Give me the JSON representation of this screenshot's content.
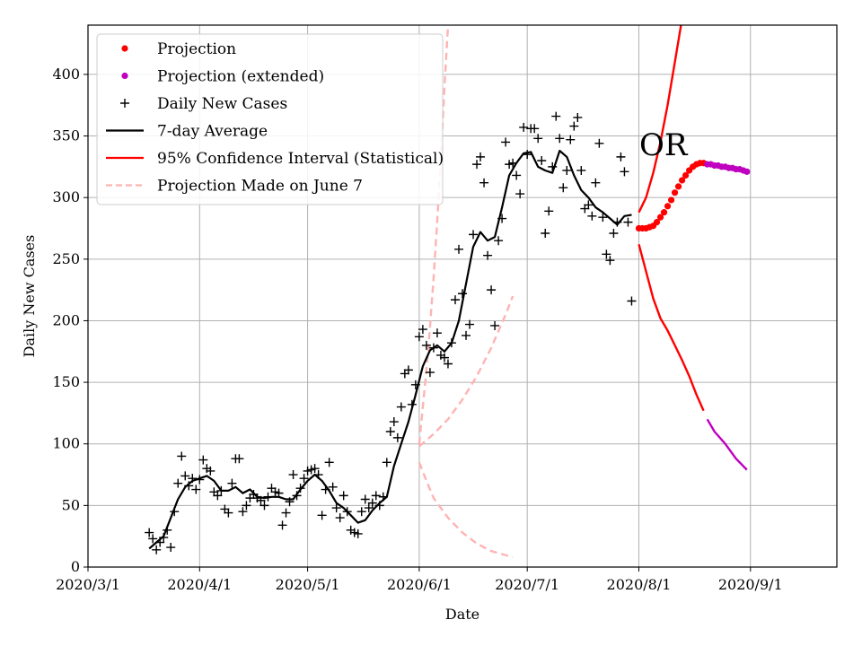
{
  "chart_data": {
    "type": "line",
    "xlabel": "Date",
    "ylabel": "Daily New Cases",
    "annotation": "OR",
    "xlim": [
      "2020-03-01",
      "2020-09-25"
    ],
    "ylim": [
      0,
      440
    ],
    "x_ticks": [
      {
        "date": "2020-03-01",
        "label": "2020/3/1"
      },
      {
        "date": "2020-04-01",
        "label": "2020/4/1"
      },
      {
        "date": "2020-05-01",
        "label": "2020/5/1"
      },
      {
        "date": "2020-06-01",
        "label": "2020/6/1"
      },
      {
        "date": "2020-07-01",
        "label": "2020/7/1"
      },
      {
        "date": "2020-08-01",
        "label": "2020/8/1"
      },
      {
        "date": "2020-09-01",
        "label": "2020/9/1"
      }
    ],
    "y_ticks": [
      0,
      50,
      100,
      150,
      200,
      250,
      300,
      350,
      400
    ],
    "grid": true,
    "legend_position": "top-left",
    "legend": [
      {
        "label": "Projection",
        "marker": "dot",
        "color": "#ff0000"
      },
      {
        "label": "Projection (extended)",
        "marker": "dot",
        "color": "#bf00bf"
      },
      {
        "label": "Daily New Cases",
        "marker": "plus",
        "color": "#000000"
      },
      {
        "label": "7-day Average",
        "marker": "line",
        "color": "#000000"
      },
      {
        "label": "95% Confidence Interval (Statistical)",
        "marker": "line",
        "color": "#ff0000"
      },
      {
        "label": "Projection Made on June 7",
        "marker": "dashed",
        "color": "#ffb3b3"
      }
    ],
    "daily_new_cases": [
      [
        "2020-03-18",
        28
      ],
      [
        "2020-03-19",
        23
      ],
      [
        "2020-03-20",
        14
      ],
      [
        "2020-03-21",
        20
      ],
      [
        "2020-03-22",
        24
      ],
      [
        "2020-03-23",
        30
      ],
      [
        "2020-03-24",
        16
      ],
      [
        "2020-03-25",
        45
      ],
      [
        "2020-03-26",
        68
      ],
      [
        "2020-03-27",
        90
      ],
      [
        "2020-03-28",
        74
      ],
      [
        "2020-03-29",
        66
      ],
      [
        "2020-03-30",
        72
      ],
      [
        "2020-03-31",
        63
      ],
      [
        "2020-04-01",
        71
      ],
      [
        "2020-04-02",
        87
      ],
      [
        "2020-04-03",
        80
      ],
      [
        "2020-04-04",
        78
      ],
      [
        "2020-04-05",
        61
      ],
      [
        "2020-04-06",
        58
      ],
      [
        "2020-04-07",
        62
      ],
      [
        "2020-04-08",
        47
      ],
      [
        "2020-04-09",
        44
      ],
      [
        "2020-04-10",
        68
      ],
      [
        "2020-04-11",
        88
      ],
      [
        "2020-04-12",
        88
      ],
      [
        "2020-04-13",
        45
      ],
      [
        "2020-04-14",
        50
      ],
      [
        "2020-04-15",
        56
      ],
      [
        "2020-04-16",
        59
      ],
      [
        "2020-04-17",
        56
      ],
      [
        "2020-04-18",
        54
      ],
      [
        "2020-04-19",
        50
      ],
      [
        "2020-04-20",
        57
      ],
      [
        "2020-04-21",
        64
      ],
      [
        "2020-04-22",
        61
      ],
      [
        "2020-04-23",
        60
      ],
      [
        "2020-04-24",
        34
      ],
      [
        "2020-04-25",
        44
      ],
      [
        "2020-04-26",
        53
      ],
      [
        "2020-04-27",
        75
      ],
      [
        "2020-04-28",
        58
      ],
      [
        "2020-04-29",
        64
      ],
      [
        "2020-04-30",
        72
      ],
      [
        "2020-05-01",
        78
      ],
      [
        "2020-05-02",
        79
      ],
      [
        "2020-05-03",
        80
      ],
      [
        "2020-05-04",
        75
      ],
      [
        "2020-05-05",
        42
      ],
      [
        "2020-05-06",
        63
      ],
      [
        "2020-05-07",
        85
      ],
      [
        "2020-05-08",
        65
      ],
      [
        "2020-05-09",
        48
      ],
      [
        "2020-05-10",
        40
      ],
      [
        "2020-05-11",
        58
      ],
      [
        "2020-05-12",
        45
      ],
      [
        "2020-05-13",
        30
      ],
      [
        "2020-05-14",
        28
      ],
      [
        "2020-05-15",
        27
      ],
      [
        "2020-05-16",
        45
      ],
      [
        "2020-05-17",
        55
      ],
      [
        "2020-05-18",
        48
      ],
      [
        "2020-05-19",
        52
      ],
      [
        "2020-05-20",
        58
      ],
      [
        "2020-05-21",
        50
      ],
      [
        "2020-05-22",
        57
      ],
      [
        "2020-05-23",
        85
      ],
      [
        "2020-05-24",
        110
      ],
      [
        "2020-05-25",
        118
      ],
      [
        "2020-05-26",
        105
      ],
      [
        "2020-05-27",
        130
      ],
      [
        "2020-05-28",
        157
      ],
      [
        "2020-05-29",
        160
      ],
      [
        "2020-05-30",
        132
      ],
      [
        "2020-05-31",
        148
      ],
      [
        "2020-06-01",
        187
      ],
      [
        "2020-06-02",
        193
      ],
      [
        "2020-06-03",
        180
      ],
      [
        "2020-06-04",
        158
      ],
      [
        "2020-06-05",
        178
      ],
      [
        "2020-06-06",
        190
      ],
      [
        "2020-06-07",
        172
      ],
      [
        "2020-06-08",
        170
      ],
      [
        "2020-06-09",
        165
      ],
      [
        "2020-06-10",
        182
      ],
      [
        "2020-06-11",
        217
      ],
      [
        "2020-06-12",
        258
      ],
      [
        "2020-06-13",
        222
      ],
      [
        "2020-06-14",
        188
      ],
      [
        "2020-06-15",
        197
      ],
      [
        "2020-06-16",
        270
      ],
      [
        "2020-06-17",
        327
      ],
      [
        "2020-06-18",
        333
      ],
      [
        "2020-06-19",
        312
      ],
      [
        "2020-06-20",
        253
      ],
      [
        "2020-06-21",
        225
      ],
      [
        "2020-06-22",
        196
      ],
      [
        "2020-06-23",
        265
      ],
      [
        "2020-06-24",
        283
      ],
      [
        "2020-06-25",
        345
      ],
      [
        "2020-06-26",
        327
      ],
      [
        "2020-06-27",
        328
      ],
      [
        "2020-06-28",
        318
      ],
      [
        "2020-06-29",
        303
      ],
      [
        "2020-06-30",
        357
      ],
      [
        "2020-07-01",
        335
      ],
      [
        "2020-07-02",
        356
      ],
      [
        "2020-07-03",
        356
      ],
      [
        "2020-07-04",
        348
      ],
      [
        "2020-07-05",
        330
      ],
      [
        "2020-07-06",
        271
      ],
      [
        "2020-07-07",
        289
      ],
      [
        "2020-07-08",
        325
      ],
      [
        "2020-07-09",
        366
      ],
      [
        "2020-07-10",
        348
      ],
      [
        "2020-07-11",
        308
      ],
      [
        "2020-07-12",
        322
      ],
      [
        "2020-07-13",
        347
      ],
      [
        "2020-07-14",
        358
      ],
      [
        "2020-07-15",
        365
      ],
      [
        "2020-07-16",
        322
      ],
      [
        "2020-07-17",
        291
      ],
      [
        "2020-07-18",
        294
      ],
      [
        "2020-07-19",
        285
      ],
      [
        "2020-07-20",
        312
      ],
      [
        "2020-07-21",
        344
      ],
      [
        "2020-07-22",
        284
      ],
      [
        "2020-07-23",
        254
      ],
      [
        "2020-07-24",
        249
      ],
      [
        "2020-07-25",
        271
      ],
      [
        "2020-07-26",
        280
      ],
      [
        "2020-07-27",
        333
      ],
      [
        "2020-07-28",
        321
      ],
      [
        "2020-07-29",
        280
      ],
      [
        "2020-07-30",
        216
      ]
    ],
    "seven_day_average": [
      [
        "2020-03-18",
        15
      ],
      [
        "2020-03-20",
        20
      ],
      [
        "2020-03-22",
        25
      ],
      [
        "2020-03-24",
        40
      ],
      [
        "2020-03-26",
        55
      ],
      [
        "2020-03-28",
        65
      ],
      [
        "2020-03-30",
        70
      ],
      [
        "2020-04-01",
        72
      ],
      [
        "2020-04-03",
        74
      ],
      [
        "2020-04-05",
        70
      ],
      [
        "2020-04-07",
        62
      ],
      [
        "2020-04-09",
        62
      ],
      [
        "2020-04-11",
        65
      ],
      [
        "2020-04-13",
        60
      ],
      [
        "2020-04-15",
        63
      ],
      [
        "2020-04-17",
        57
      ],
      [
        "2020-04-19",
        56
      ],
      [
        "2020-04-21",
        57
      ],
      [
        "2020-04-23",
        57
      ],
      [
        "2020-04-25",
        55
      ],
      [
        "2020-04-27",
        55
      ],
      [
        "2020-04-29",
        63
      ],
      [
        "2020-05-01",
        70
      ],
      [
        "2020-05-03",
        75
      ],
      [
        "2020-05-05",
        70
      ],
      [
        "2020-05-07",
        62
      ],
      [
        "2020-05-09",
        52
      ],
      [
        "2020-05-11",
        48
      ],
      [
        "2020-05-13",
        42
      ],
      [
        "2020-05-15",
        36
      ],
      [
        "2020-05-17",
        38
      ],
      [
        "2020-05-19",
        46
      ],
      [
        "2020-05-21",
        52
      ],
      [
        "2020-05-23",
        57
      ],
      [
        "2020-05-25",
        82
      ],
      [
        "2020-05-27",
        100
      ],
      [
        "2020-05-29",
        118
      ],
      [
        "2020-05-31",
        140
      ],
      [
        "2020-06-02",
        163
      ],
      [
        "2020-06-04",
        176
      ],
      [
        "2020-06-06",
        180
      ],
      [
        "2020-06-08",
        175
      ],
      [
        "2020-06-10",
        182
      ],
      [
        "2020-06-12",
        200
      ],
      [
        "2020-06-14",
        230
      ],
      [
        "2020-06-16",
        260
      ],
      [
        "2020-06-18",
        272
      ],
      [
        "2020-06-20",
        265
      ],
      [
        "2020-06-22",
        268
      ],
      [
        "2020-06-24",
        292
      ],
      [
        "2020-06-26",
        318
      ],
      [
        "2020-06-28",
        328
      ],
      [
        "2020-06-30",
        336
      ],
      [
        "2020-07-02",
        337
      ],
      [
        "2020-07-04",
        325
      ],
      [
        "2020-07-06",
        322
      ],
      [
        "2020-07-08",
        320
      ],
      [
        "2020-07-10",
        338
      ],
      [
        "2020-07-12",
        333
      ],
      [
        "2020-07-14",
        318
      ],
      [
        "2020-07-16",
        306
      ],
      [
        "2020-07-18",
        300
      ],
      [
        "2020-07-20",
        292
      ],
      [
        "2020-07-22",
        288
      ],
      [
        "2020-07-24",
        283
      ],
      [
        "2020-07-26",
        278
      ],
      [
        "2020-07-28",
        285
      ],
      [
        "2020-07-30",
        286
      ]
    ],
    "projection": [
      [
        "2020-08-01",
        275
      ],
      [
        "2020-08-02",
        275
      ],
      [
        "2020-08-03",
        275
      ],
      [
        "2020-08-04",
        276
      ],
      [
        "2020-08-05",
        277
      ],
      [
        "2020-08-06",
        280
      ],
      [
        "2020-08-07",
        284
      ],
      [
        "2020-08-08",
        288
      ],
      [
        "2020-08-09",
        293
      ],
      [
        "2020-08-10",
        298
      ],
      [
        "2020-08-11",
        304
      ],
      [
        "2020-08-12",
        309
      ],
      [
        "2020-08-13",
        314
      ],
      [
        "2020-08-14",
        318
      ],
      [
        "2020-08-15",
        322
      ],
      [
        "2020-08-16",
        325
      ],
      [
        "2020-08-17",
        327
      ],
      [
        "2020-08-18",
        328
      ],
      [
        "2020-08-19",
        328
      ]
    ],
    "projection_extended": [
      [
        "2020-08-20",
        327
      ],
      [
        "2020-08-21",
        327
      ],
      [
        "2020-08-22",
        326
      ],
      [
        "2020-08-23",
        326
      ],
      [
        "2020-08-24",
        325
      ],
      [
        "2020-08-25",
        325
      ],
      [
        "2020-08-26",
        324
      ],
      [
        "2020-08-27",
        324
      ],
      [
        "2020-08-28",
        323
      ],
      [
        "2020-08-29",
        323
      ],
      [
        "2020-08-30",
        322
      ],
      [
        "2020-08-31",
        321
      ]
    ],
    "ci_upper": [
      [
        "2020-08-01",
        288
      ],
      [
        "2020-08-03",
        300
      ],
      [
        "2020-08-05",
        320
      ],
      [
        "2020-08-07",
        345
      ],
      [
        "2020-08-09",
        375
      ],
      [
        "2020-08-11",
        410
      ],
      [
        "2020-08-13",
        445
      ]
    ],
    "ci_lower": [
      [
        "2020-08-01",
        262
      ],
      [
        "2020-08-03",
        240
      ],
      [
        "2020-08-05",
        218
      ],
      [
        "2020-08-07",
        202
      ],
      [
        "2020-08-09",
        192
      ],
      [
        "2020-08-11",
        180
      ],
      [
        "2020-08-13",
        168
      ],
      [
        "2020-08-15",
        155
      ],
      [
        "2020-08-17",
        140
      ],
      [
        "2020-08-19",
        127
      ]
    ],
    "ci_lower_extended": [
      [
        "2020-08-20",
        120
      ],
      [
        "2020-08-22",
        110
      ],
      [
        "2020-08-25",
        100
      ],
      [
        "2020-08-28",
        88
      ],
      [
        "2020-08-31",
        79
      ]
    ],
    "june7_projection_upper": [
      [
        "2020-06-01",
        100
      ],
      [
        "2020-06-02",
        130
      ],
      [
        "2020-06-03",
        160
      ],
      [
        "2020-06-04",
        195
      ],
      [
        "2020-06-05",
        235
      ],
      [
        "2020-06-06",
        280
      ],
      [
        "2020-06-07",
        330
      ],
      [
        "2020-06-08",
        390
      ],
      [
        "2020-06-09",
        440
      ]
    ],
    "june7_projection_middle": [
      [
        "2020-06-01",
        98
      ],
      [
        "2020-06-05",
        108
      ],
      [
        "2020-06-09",
        120
      ],
      [
        "2020-06-13",
        136
      ],
      [
        "2020-06-17",
        155
      ],
      [
        "2020-06-21",
        178
      ],
      [
        "2020-06-25",
        205
      ],
      [
        "2020-06-27",
        220
      ]
    ],
    "june7_projection_lower": [
      [
        "2020-06-01",
        85
      ],
      [
        "2020-06-03",
        70
      ],
      [
        "2020-06-05",
        56
      ],
      [
        "2020-06-09",
        40
      ],
      [
        "2020-06-13",
        28
      ],
      [
        "2020-06-17",
        19
      ],
      [
        "2020-06-21",
        13
      ],
      [
        "2020-06-27",
        8
      ]
    ]
  }
}
